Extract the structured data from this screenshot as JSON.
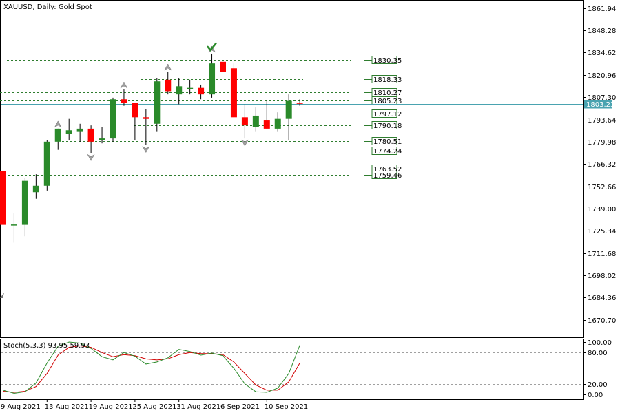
{
  "window": {
    "title": "XAUUSD, Daily:  Gold Spot"
  },
  "colors": {
    "bull": "#2a8a2a",
    "bear": "#ff0000",
    "wick": "#000000",
    "level_line": "#2f7d2f",
    "level_box": "#2f7d2f",
    "current_price": "#4aa3b0",
    "stoch_main": "#2a8a2a",
    "stoch_signal": "#d00000",
    "fractal_arrow": "#a0a0a0",
    "check_mark": "#2a8a2a"
  },
  "chart_data": {
    "type": "candlestick",
    "symbol": "XAUUSD",
    "timeframe": "Daily",
    "description": "Gold Spot",
    "ylim": [
      1660.0,
      1866.5
    ],
    "y_ticks": [
      "1861.94",
      "1848.28",
      "1834.62",
      "1820.96",
      "1807.30",
      "1793.64",
      "1779.98",
      "1766.32",
      "1752.66",
      "1739.00",
      "1725.34",
      "1711.68",
      "1698.02",
      "1684.36",
      "1670.70"
    ],
    "x_ticks": [
      {
        "label": "9 Aug 2021",
        "index": 0
      },
      {
        "label": "13 Aug 2021",
        "index": 4
      },
      {
        "label": "19 Aug 2021",
        "index": 8
      },
      {
        "label": "25 Aug 2021",
        "index": 12
      },
      {
        "label": "31 Aug 2021",
        "index": 16
      },
      {
        "label": "6 Sep 2021",
        "index": 20
      },
      {
        "label": "10 Sep 2021",
        "index": 24
      }
    ],
    "candles": [
      {
        "o": 1762.0,
        "h": 1763.0,
        "l": 1729.0,
        "c": 1729.0
      },
      {
        "o": 1729.0,
        "h": 1736.0,
        "l": 1718.0,
        "c": 1729.2
      },
      {
        "o": 1729.0,
        "h": 1758.0,
        "l": 1722.0,
        "c": 1756.0
      },
      {
        "o": 1749.0,
        "h": 1760.0,
        "l": 1745.0,
        "c": 1753.0
      },
      {
        "o": 1753.0,
        "h": 1781.0,
        "l": 1750.0,
        "c": 1780.0
      },
      {
        "o": 1780.0,
        "h": 1788.0,
        "l": 1775.0,
        "c": 1788.0
      },
      {
        "o": 1785.0,
        "h": 1794.0,
        "l": 1781.0,
        "c": 1787.0
      },
      {
        "o": 1786.0,
        "h": 1791.0,
        "l": 1780.0,
        "c": 1788.0
      },
      {
        "o": 1788.0,
        "h": 1790.0,
        "l": 1773.0,
        "c": 1780.0
      },
      {
        "o": 1781.0,
        "h": 1789.0,
        "l": 1779.0,
        "c": 1782.0
      },
      {
        "o": 1782.0,
        "h": 1807.0,
        "l": 1780.0,
        "c": 1806.0
      },
      {
        "o": 1806.0,
        "h": 1812.0,
        "l": 1802.0,
        "c": 1804.0
      },
      {
        "o": 1804.0,
        "h": 1804.0,
        "l": 1781.0,
        "c": 1795.0
      },
      {
        "o": 1795.0,
        "h": 1800.0,
        "l": 1778.0,
        "c": 1794.0
      },
      {
        "o": 1791.0,
        "h": 1819.0,
        "l": 1786.0,
        "c": 1817.0
      },
      {
        "o": 1818.0,
        "h": 1823.0,
        "l": 1809.0,
        "c": 1811.0
      },
      {
        "o": 1809.0,
        "h": 1819.0,
        "l": 1803.0,
        "c": 1814.0
      },
      {
        "o": 1813.0,
        "h": 1818.0,
        "l": 1809.0,
        "c": 1813.0
      },
      {
        "o": 1813.0,
        "h": 1815.0,
        "l": 1806.0,
        "c": 1809.0
      },
      {
        "o": 1809.0,
        "h": 1834.0,
        "l": 1807.0,
        "c": 1828.0
      },
      {
        "o": 1829.0,
        "h": 1830.0,
        "l": 1822.0,
        "c": 1823.0
      },
      {
        "o": 1825.0,
        "h": 1828.0,
        "l": 1795.0,
        "c": 1795.0
      },
      {
        "o": 1795.0,
        "h": 1803.0,
        "l": 1782.0,
        "c": 1790.0
      },
      {
        "o": 1789.0,
        "h": 1801.0,
        "l": 1786.0,
        "c": 1796.0
      },
      {
        "o": 1793.0,
        "h": 1805.0,
        "l": 1788.0,
        "c": 1788.0
      },
      {
        "o": 1788.0,
        "h": 1798.0,
        "l": 1786.0,
        "c": 1794.0
      },
      {
        "o": 1794.0,
        "h": 1809.0,
        "l": 1781.0,
        "c": 1805.0
      },
      {
        "o": 1804.0,
        "h": 1806.0,
        "l": 1802.0,
        "c": 1803.23
      }
    ],
    "current_price": "1803.23",
    "levels": [
      "1830.35",
      "1818.33",
      "1810.27",
      "1805.23",
      "1797.12",
      "1790.18",
      "1780.51",
      "1774.24",
      "1763.52",
      "1759.46"
    ],
    "fractals_up": [
      5,
      11,
      15,
      19
    ],
    "fractals_down": [
      8,
      13,
      22
    ],
    "check_mark_index": 19,
    "stochastic": {
      "label": "Stoch(5,3,3) 93.95 59.93",
      "ylim": [
        0,
        100
      ],
      "y_ticks": [
        "100.00",
        "80.00",
        "20.00",
        "0.00"
      ],
      "dashed_levels": [
        80,
        20
      ],
      "main": [
        8,
        2,
        5,
        22,
        60,
        92,
        100,
        98,
        88,
        72,
        66,
        80,
        73,
        58,
        62,
        70,
        86,
        82,
        75,
        79,
        74,
        50,
        20,
        5,
        4,
        12,
        40,
        93.95
      ],
      "signal": [
        6,
        4,
        6,
        15,
        40,
        75,
        90,
        93,
        90,
        80,
        72,
        76,
        74,
        68,
        66,
        68,
        76,
        80,
        78,
        78,
        76,
        62,
        40,
        18,
        8,
        8,
        24,
        59.93
      ]
    }
  }
}
